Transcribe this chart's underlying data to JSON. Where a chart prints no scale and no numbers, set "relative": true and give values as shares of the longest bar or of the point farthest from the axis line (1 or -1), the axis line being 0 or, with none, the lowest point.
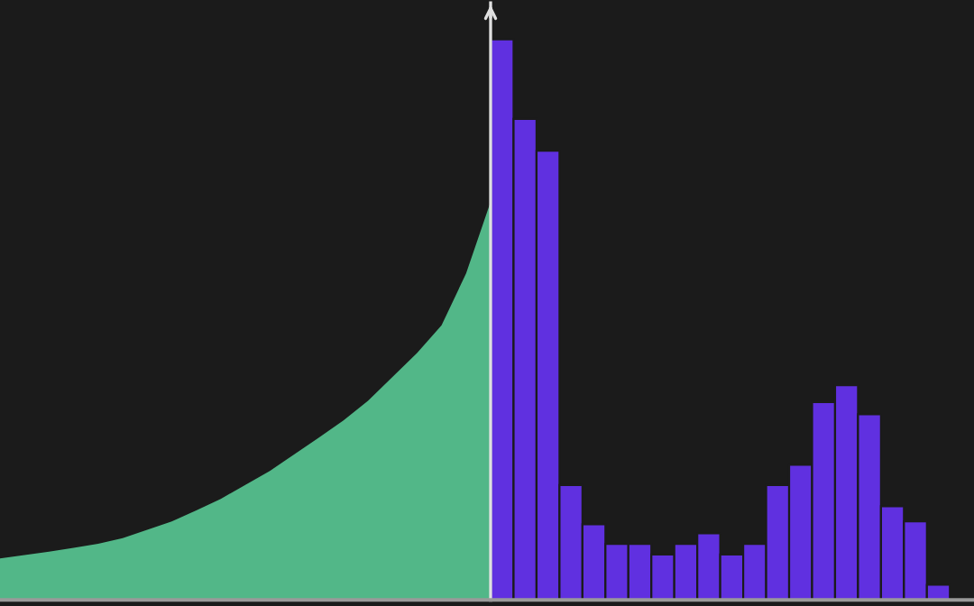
{
  "chart_data": [
    {
      "type": "area",
      "relative": true,
      "color": "#52b788",
      "categories": [
        null,
        null,
        null,
        null,
        null,
        null,
        null,
        null,
        null,
        null,
        null,
        null,
        null,
        null,
        null,
        null,
        null,
        null,
        null,
        null,
        null
      ],
      "values": [
        0.104,
        0.113,
        0.121,
        0.131,
        0.141,
        0.155,
        0.176,
        0.197,
        0.225,
        0.254,
        0.289,
        0.324,
        0.366,
        0.408,
        0.451,
        0.5,
        0.56,
        0.62,
        0.69,
        0.82,
        1
      ]
    },
    {
      "type": "bar",
      "relative": true,
      "color": "#6030e0",
      "categories": [
        null,
        null,
        null,
        null,
        null,
        null,
        null,
        null,
        null,
        null,
        null,
        null,
        null,
        null,
        null,
        null,
        null,
        null,
        null,
        null
      ],
      "values": [
        1,
        0.858,
        0.801,
        0.205,
        0.135,
        0.1,
        0.1,
        0.081,
        0.1,
        0.119,
        0.081,
        0.1,
        0.205,
        0.241,
        0.353,
        0.383,
        0.331,
        0.167,
        0.14,
        0.027
      ]
    }
  ]
}
